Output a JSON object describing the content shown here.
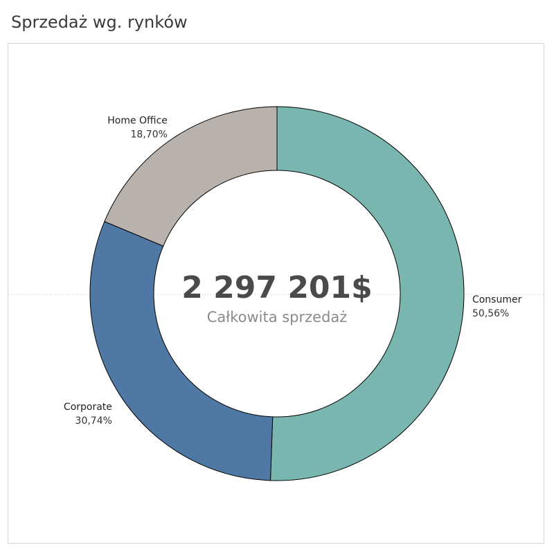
{
  "title": "Sprzedaż wg. rynków",
  "center": {
    "value": "2 297 201$",
    "label": "Całkowita sprzedaż"
  },
  "chart_data": {
    "type": "pie",
    "variant": "donut",
    "title": "Sprzedaż wg. rynków",
    "total": 2297201,
    "categories": [
      "Consumer",
      "Corporate",
      "Home Office"
    ],
    "values": [
      50.56,
      30.74,
      18.7
    ],
    "value_labels": [
      "50,56%",
      "30,74%",
      "18,70%"
    ],
    "unit": "percent of total sales",
    "colors": [
      "#79b6b0",
      "#4f78a5",
      "#b9b1ab"
    ],
    "start_angle": "12 o'clock",
    "direction": "clockwise",
    "slice_border_color": "#000000",
    "reference_line": "dotted horizontal line through center"
  }
}
